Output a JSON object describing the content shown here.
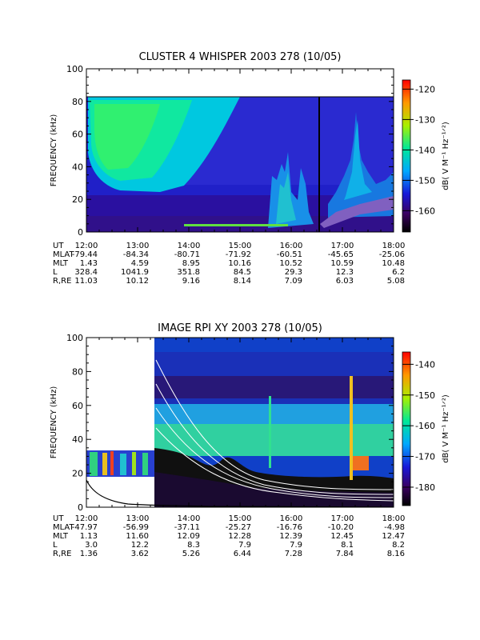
{
  "chart_data": [
    {
      "type": "heatmap",
      "title": "CLUSTER 4 WHISPER 2003 278 (10/05)",
      "ylabel": "FREQUENCY (kHz)",
      "ylim": [
        0,
        100
      ],
      "yticks": [
        "0",
        "20",
        "40",
        "60",
        "80",
        "100"
      ],
      "colorbar": {
        "label": "dB( V M⁻¹ Hz⁻¹ᐟ²)",
        "ticks": [
          "-120",
          "-130",
          "-140",
          "-150",
          "-160"
        ],
        "range": [
          -167,
          -117
        ]
      },
      "ephemeris": {
        "row_labels": [
          "UT",
          "MLAT",
          "MLT",
          "L",
          "R,RE"
        ],
        "columns": [
          [
            "12:00",
            "-79.44",
            "1.43",
            "328.4",
            "11.03"
          ],
          [
            "13:00",
            "-84.34",
            "4.59",
            "1041.9",
            "10.12"
          ],
          [
            "14:00",
            "-80.71",
            "8.95",
            "351.8",
            "9.16"
          ],
          [
            "15:00",
            "-71.92",
            "10.16",
            "84.5",
            "8.14"
          ],
          [
            "16:00",
            "-60.51",
            "10.52",
            "29.3",
            "7.09"
          ],
          [
            "17:00",
            "-45.65",
            "10.59",
            "12.3",
            "6.03"
          ],
          [
            "18:00",
            "-25.06",
            "10.48",
            "6.2",
            "5.08"
          ]
        ]
      },
      "marker_ut": "16:32"
    },
    {
      "type": "heatmap",
      "title": "IMAGE RPI XY 2003 278 (10/05)",
      "ylabel": "FREQUENCY (kHz)",
      "ylim": [
        0,
        100
      ],
      "yticks": [
        "0",
        "20",
        "40",
        "60",
        "80",
        "100"
      ],
      "colorbar": {
        "label": "dB( V M⁻¹ Hz⁻¹ᐟ²)",
        "ticks": [
          "-140",
          "-150",
          "-160",
          "-170",
          "-180"
        ],
        "range": [
          -186,
          -136
        ]
      },
      "ephemeris": {
        "row_labels": [
          "UT",
          "MLAT",
          "MLT",
          "L",
          "R,RE"
        ],
        "columns": [
          [
            "12:00",
            "-47.97",
            "1.13",
            "3.0",
            "1.36"
          ],
          [
            "13:00",
            "-56.99",
            "11.60",
            "12.2",
            "3.62"
          ],
          [
            "14:00",
            "-37.11",
            "12.09",
            "8.3",
            "5.26"
          ],
          [
            "15:00",
            "-25.27",
            "12.28",
            "7.9",
            "6.44"
          ],
          [
            "16:00",
            "-16.76",
            "12.39",
            "7.9",
            "7.28"
          ],
          [
            "17:00",
            "-10.20",
            "12.45",
            "8.1",
            "7.84"
          ],
          [
            "18:00",
            "-4.98",
            "12.47",
            "8.2",
            "8.16"
          ]
        ]
      }
    }
  ]
}
